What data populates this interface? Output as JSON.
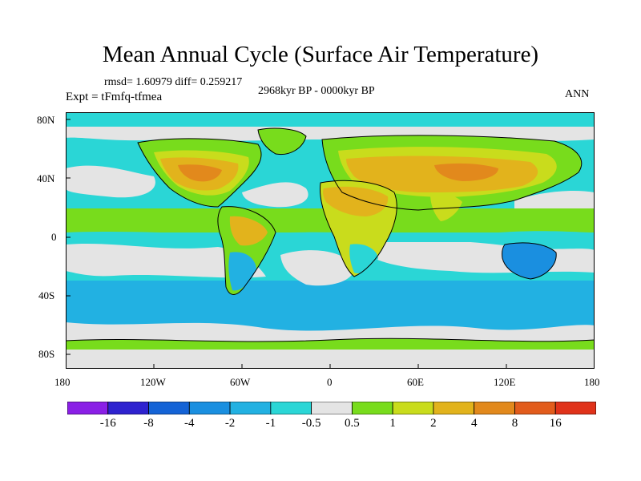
{
  "header": {
    "title": "Mean Annual Cycle (Surface Air Temperature)",
    "stats": "rmsd= 1.60979 diff= 0.259217",
    "experiment": "Expt = tFmfq-tfmea",
    "period": "2968kyr BP - 0000kyr BP",
    "season": "ANN"
  },
  "axes": {
    "x_ticks": [
      "180",
      "120W",
      "60W",
      "0",
      "60E",
      "120E",
      "180"
    ],
    "y_ticks": [
      "80N",
      "40N",
      "0",
      "40S",
      "80S"
    ]
  },
  "colorbar": {
    "labels": [
      "-16",
      "-8",
      "-4",
      "-2",
      "-1",
      "-0.5",
      "0.5",
      "1",
      "2",
      "4",
      "8",
      "16"
    ],
    "colors": [
      "#8a1fe6",
      "#2e22cf",
      "#1463d6",
      "#1a8fe0",
      "#22b1e2",
      "#2ad6d6",
      "#e4e4e4",
      "#78dc1c",
      "#c9dc1c",
      "#e2b31c",
      "#e2891c",
      "#e25c1c",
      "#e0321a"
    ]
  },
  "palette": {
    "neg_lt": "#2ad6d6",
    "neg_mid": "#22b1e2",
    "neg_dk": "#1a8fe0",
    "neutral": "#e4e4e4",
    "pos1": "#78dc1c",
    "pos2": "#c9dc1c",
    "pos3": "#e2b31c",
    "pos4": "#e2891c",
    "coast": "#000000"
  }
}
